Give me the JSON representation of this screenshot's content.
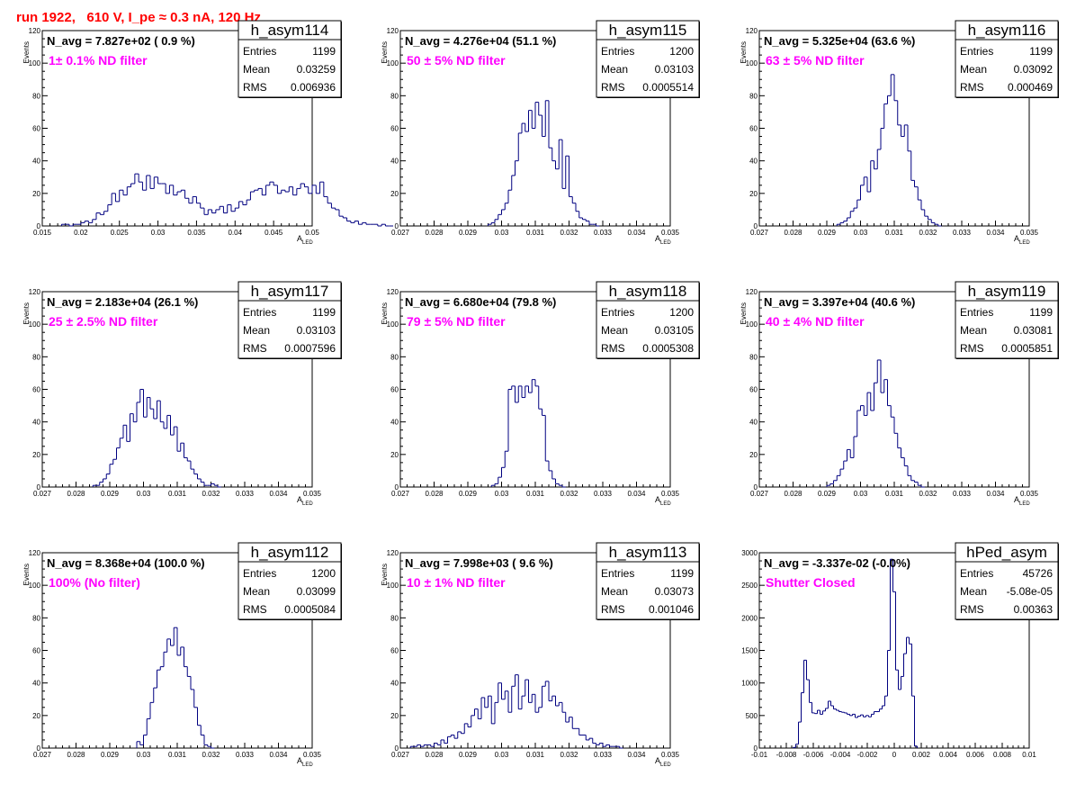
{
  "header": {
    "run_title": "run 1922,   610 V, I_pe ≈ 0.3 nA, 120 Hz"
  },
  "colors": {
    "hist_line": "#000080",
    "title": "#ff0000",
    "filter_text": "#ff00ff"
  },
  "chart_data": [
    {
      "type": "histogram",
      "name": "h_asym114",
      "navg_label": "N_avg = 7.827e+02 ( 0.9 %)",
      "filter_label": "1± 0.1% ND filter",
      "stats": {
        "entries": "1199",
        "mean": "0.03259",
        "rms": "0.006936"
      },
      "stat_keys": [
        "Entries",
        "Mean",
        "RMS"
      ],
      "xlabel_main": "A",
      "xlabel_sub": "LED",
      "ylabel": "Events",
      "xlim": [
        0.015,
        0.05
      ],
      "ylim": [
        0,
        120
      ],
      "xticks": [
        0.015,
        0.02,
        0.025,
        0.03,
        0.035,
        0.04,
        0.045,
        0.05
      ],
      "xtick_labels": [
        "0.015",
        "0.02",
        "0.025",
        "0.03",
        "0.035",
        "0.04",
        "0.045",
        "0.05"
      ],
      "yticks": [
        0,
        20,
        40,
        60,
        80,
        100,
        120
      ],
      "ytick_labels": [
        "0",
        "20",
        "40",
        "60",
        "80",
        "100",
        "120"
      ],
      "bins": {
        "start": 0.0175,
        "width": 0.0005,
        "counts": [
          1,
          1,
          0,
          1,
          1,
          2,
          3,
          2,
          4,
          8,
          7,
          9,
          13,
          20,
          15,
          22,
          19,
          24,
          26,
          32,
          27,
          22,
          31,
          23,
          30,
          26,
          26,
          20,
          25,
          19,
          21,
          22,
          17,
          14,
          18,
          14,
          11,
          7,
          10,
          8,
          10,
          12,
          8,
          13,
          9,
          11,
          15,
          13,
          16,
          21,
          22,
          23,
          19,
          25,
          27,
          25,
          20,
          22,
          21,
          24,
          19,
          23,
          26,
          24,
          20,
          25,
          20,
          27,
          18,
          14,
          11,
          10,
          6,
          5,
          3,
          2,
          3,
          1,
          2,
          1,
          1,
          1,
          0,
          1,
          0,
          0
        ]
      }
    },
    {
      "type": "histogram",
      "name": "h_asym115",
      "navg_label": "N_avg = 4.276e+04 (51.1 %)",
      "filter_label": "50 ± 5% ND filter",
      "stats": {
        "entries": "1200",
        "mean": "0.03103",
        "rms": "0.0005514"
      },
      "stat_keys": [
        "Entries",
        "Mean",
        "RMS"
      ],
      "xlabel_main": "A",
      "xlabel_sub": "LED",
      "ylabel": "Events",
      "xlim": [
        0.027,
        0.035
      ],
      "ylim": [
        0,
        120
      ],
      "xticks": [
        0.027,
        0.028,
        0.029,
        0.03,
        0.031,
        0.032,
        0.033,
        0.034,
        0.035
      ],
      "xtick_labels": [
        "0.027",
        "0.028",
        "0.029",
        "0.03",
        "0.031",
        "0.032",
        "0.033",
        "0.034",
        "0.035"
      ],
      "yticks": [
        0,
        20,
        40,
        60,
        80,
        100,
        120
      ],
      "ytick_labels": [
        "0",
        "20",
        "40",
        "60",
        "80",
        "100",
        "120"
      ],
      "bins": {
        "start": 0.0296,
        "width": 0.0001,
        "counts": [
          1,
          2,
          4,
          7,
          10,
          14,
          22,
          31,
          40,
          57,
          63,
          58,
          71,
          60,
          76,
          68,
          55,
          77,
          48,
          40,
          35,
          53,
          23,
          43,
          18,
          14,
          9,
          5,
          4,
          3,
          1,
          1,
          0
        ]
      }
    },
    {
      "type": "histogram",
      "name": "h_asym116",
      "navg_label": "N_avg = 5.325e+04 (63.6 %)",
      "filter_label": "63 ± 5% ND filter",
      "stats": {
        "entries": "1199",
        "mean": "0.03092",
        "rms": "0.000469"
      },
      "stat_keys": [
        "Entries",
        "Mean",
        "RMS"
      ],
      "xlabel_main": "A",
      "xlabel_sub": "LED",
      "ylabel": "Events",
      "xlim": [
        0.027,
        0.035
      ],
      "ylim": [
        0,
        120
      ],
      "xticks": [
        0.027,
        0.028,
        0.029,
        0.03,
        0.031,
        0.032,
        0.033,
        0.034,
        0.035
      ],
      "xtick_labels": [
        "0.027",
        "0.028",
        "0.029",
        "0.03",
        "0.031",
        "0.032",
        "0.033",
        "0.034",
        "0.035"
      ],
      "yticks": [
        0,
        20,
        40,
        60,
        80,
        100,
        120
      ],
      "ytick_labels": [
        "0",
        "20",
        "40",
        "60",
        "80",
        "100",
        "120"
      ],
      "bins": {
        "start": 0.0293,
        "width": 0.0001,
        "counts": [
          1,
          2,
          3,
          5,
          9,
          11,
          16,
          25,
          30,
          21,
          40,
          35,
          47,
          60,
          75,
          80,
          93,
          77,
          62,
          55,
          62,
          46,
          28,
          24,
          16,
          10,
          6,
          4,
          2,
          1,
          0
        ]
      }
    },
    {
      "type": "histogram",
      "name": "h_asym117",
      "navg_label": "N_avg = 2.183e+04 (26.1 %)",
      "filter_label": "25 ± 2.5% ND filter",
      "stats": {
        "entries": "1199",
        "mean": "0.03103",
        "rms": "0.0007596"
      },
      "stat_keys": [
        "Entries",
        "Mean",
        "RMS"
      ],
      "xlabel_main": "A",
      "xlabel_sub": "LED",
      "ylabel": "Events",
      "xlim": [
        0.027,
        0.035
      ],
      "ylim": [
        0,
        120
      ],
      "xticks": [
        0.027,
        0.028,
        0.029,
        0.03,
        0.031,
        0.032,
        0.033,
        0.034,
        0.035
      ],
      "xtick_labels": [
        "0.027",
        "0.028",
        "0.029",
        "0.03",
        "0.031",
        "0.032",
        "0.033",
        "0.034",
        "0.035"
      ],
      "yticks": [
        0,
        20,
        40,
        60,
        80,
        100,
        120
      ],
      "ytick_labels": [
        "0",
        "20",
        "40",
        "60",
        "80",
        "100",
        "120"
      ],
      "bins": {
        "start": 0.0285,
        "width": 0.0001,
        "counts": [
          1,
          1,
          3,
          5,
          8,
          14,
          17,
          24,
          30,
          38,
          28,
          45,
          40,
          52,
          60,
          43,
          55,
          48,
          42,
          53,
          40,
          36,
          44,
          32,
          37,
          22,
          27,
          18,
          16,
          11,
          8,
          5,
          3,
          1,
          1,
          2,
          1,
          0
        ]
      }
    },
    {
      "type": "histogram",
      "name": "h_asym118",
      "navg_label": "N_avg = 6.680e+04 (79.8 %)",
      "filter_label": "79 ± 5% ND filter",
      "stats": {
        "entries": "1200",
        "mean": "0.03105",
        "rms": "0.0005308"
      },
      "stat_keys": [
        "Entries",
        "Mean",
        "RMS"
      ],
      "xlabel_main": "A",
      "xlabel_sub": "LED",
      "ylabel": "Events",
      "xlim": [
        0.027,
        0.035
      ],
      "ylim": [
        0,
        120
      ],
      "xticks": [
        0.027,
        0.028,
        0.029,
        0.03,
        0.031,
        0.032,
        0.033,
        0.034,
        0.035
      ],
      "xtick_labels": [
        "0.027",
        "0.028",
        "0.029",
        "0.03",
        "0.031",
        "0.032",
        "0.033",
        "0.034",
        "0.035"
      ],
      "yticks": [
        0,
        20,
        40,
        60,
        80,
        100,
        120
      ],
      "ytick_labels": [
        "0",
        "20",
        "40",
        "60",
        "80",
        "100",
        "120"
      ],
      "bins": {
        "start": 0.0297,
        "width": 0.0001,
        "counts": [
          1,
          2,
          6,
          12,
          22,
          60,
          62,
          52,
          62,
          55,
          62,
          58,
          66,
          62,
          48,
          44,
          16,
          10,
          5,
          2,
          1,
          0
        ]
      }
    },
    {
      "type": "histogram",
      "name": "h_asym119",
      "navg_label": "N_avg = 3.397e+04 (40.6 %)",
      "filter_label": "40 ± 4% ND filter",
      "stats": {
        "entries": "1199",
        "mean": "0.03081",
        "rms": "0.0005851"
      },
      "stat_keys": [
        "Entries",
        "Mean",
        "RMS"
      ],
      "xlabel_main": "A",
      "xlabel_sub": "LED",
      "ylabel": "Events",
      "xlim": [
        0.027,
        0.035
      ],
      "ylim": [
        0,
        120
      ],
      "xticks": [
        0.027,
        0.028,
        0.029,
        0.03,
        0.031,
        0.032,
        0.033,
        0.034,
        0.035
      ],
      "xtick_labels": [
        "0.027",
        "0.028",
        "0.029",
        "0.03",
        "0.031",
        "0.032",
        "0.033",
        "0.034",
        "0.035"
      ],
      "yticks": [
        0,
        20,
        40,
        60,
        80,
        100,
        120
      ],
      "ytick_labels": [
        "0",
        "20",
        "40",
        "60",
        "80",
        "100",
        "120"
      ],
      "bins": {
        "start": 0.029,
        "width": 0.0001,
        "counts": [
          1,
          2,
          4,
          7,
          11,
          16,
          23,
          18,
          31,
          47,
          50,
          44,
          58,
          47,
          64,
          78,
          58,
          66,
          50,
          43,
          33,
          24,
          18,
          13,
          7,
          4,
          3,
          1,
          0
        ]
      }
    },
    {
      "type": "histogram",
      "name": "h_asym112",
      "navg_label": "N_avg = 8.368e+04 (100.0 %)",
      "filter_label": "100% (No filter)",
      "stats": {
        "entries": "1200",
        "mean": "0.03099",
        "rms": "0.0005084"
      },
      "stat_keys": [
        "Entries",
        "Mean",
        "RMS"
      ],
      "xlabel_main": "A",
      "xlabel_sub": "LED",
      "ylabel": "Events",
      "xlim": [
        0.027,
        0.035
      ],
      "ylim": [
        0,
        120
      ],
      "xticks": [
        0.027,
        0.028,
        0.029,
        0.03,
        0.031,
        0.032,
        0.033,
        0.034,
        0.035
      ],
      "xtick_labels": [
        "0.027",
        "0.028",
        "0.029",
        "0.03",
        "0.031",
        "0.032",
        "0.033",
        "0.034",
        "0.035"
      ],
      "yticks": [
        0,
        20,
        40,
        60,
        80,
        100,
        120
      ],
      "ytick_labels": [
        "0",
        "20",
        "40",
        "60",
        "80",
        "100",
        "120"
      ],
      "bins": {
        "start": 0.0298,
        "width": 0.0001,
        "counts": [
          4,
          2,
          8,
          18,
          28,
          37,
          48,
          50,
          59,
          67,
          63,
          74,
          57,
          62,
          50,
          44,
          36,
          25,
          14,
          8,
          2,
          1,
          0
        ]
      }
    },
    {
      "type": "histogram",
      "name": "h_asym113",
      "navg_label": "N_avg = 7.998e+03 ( 9.6 %)",
      "filter_label": "10 ± 1% ND filter",
      "stats": {
        "entries": "1199",
        "mean": "0.03073",
        "rms": "0.001046"
      },
      "stat_keys": [
        "Entries",
        "Mean",
        "RMS"
      ],
      "xlabel_main": "A",
      "xlabel_sub": "LED",
      "ylabel": "Events",
      "xlim": [
        0.027,
        0.035
      ],
      "ylim": [
        0,
        120
      ],
      "xticks": [
        0.027,
        0.028,
        0.029,
        0.03,
        0.031,
        0.032,
        0.033,
        0.034,
        0.035
      ],
      "xtick_labels": [
        "0.027",
        "0.028",
        "0.029",
        "0.03",
        "0.031",
        "0.032",
        "0.033",
        "0.034",
        "0.035"
      ],
      "yticks": [
        0,
        20,
        40,
        60,
        80,
        100,
        120
      ],
      "ytick_labels": [
        "0",
        "20",
        "40",
        "60",
        "80",
        "100",
        "120"
      ],
      "bins": {
        "start": 0.0273,
        "width": 0.0001,
        "counts": [
          1,
          1,
          2,
          1,
          2,
          2,
          1,
          3,
          2,
          5,
          3,
          7,
          8,
          6,
          10,
          9,
          15,
          13,
          20,
          24,
          18,
          31,
          25,
          32,
          15,
          28,
          40,
          30,
          35,
          22,
          38,
          45,
          24,
          32,
          42,
          28,
          33,
          22,
          25,
          38,
          41,
          29,
          32,
          26,
          28,
          22,
          16,
          19,
          12,
          12,
          8,
          8,
          5,
          6,
          3,
          2,
          3,
          1,
          2,
          1,
          1,
          1,
          0
        ]
      }
    },
    {
      "type": "histogram",
      "name": "hPed_asym",
      "navg_label": "N_avg = -3.337e-02 (-0.0%)",
      "filter_label": "Shutter Closed",
      "stats": {
        "entries": "45726",
        "mean": "-5.08e-05",
        "rms": "0.00363"
      },
      "stat_keys": [
        "Entries",
        "Mean",
        "RMS"
      ],
      "xlabel_main": "",
      "xlabel_sub": "",
      "ylabel": "",
      "xlim": [
        -0.01,
        0.01
      ],
      "ylim": [
        0,
        3000
      ],
      "xticks": [
        -0.01,
        -0.008,
        -0.006,
        -0.004,
        -0.002,
        0,
        0.002,
        0.004,
        0.006,
        0.008,
        0.01
      ],
      "xtick_labels": [
        "-0.01",
        "-0.008",
        "-0.006",
        "-0.004",
        "-0.002",
        "0",
        "0.002",
        "0.004",
        "0.006",
        "0.008",
        "0.01"
      ],
      "yticks": [
        0,
        500,
        1000,
        1500,
        2000,
        2500,
        3000
      ],
      "ytick_labels": [
        "0",
        "500",
        "1000",
        "1500",
        "2000",
        "2500",
        "3000"
      ],
      "bins": {
        "start": -0.0075,
        "width": 0.0002,
        "counts": [
          10,
          60,
          400,
          850,
          1350,
          1050,
          700,
          540,
          530,
          580,
          520,
          570,
          610,
          720,
          650,
          600,
          580,
          560,
          550,
          540,
          520,
          500,
          520,
          470,
          490,
          510,
          480,
          500,
          480,
          520,
          560,
          560,
          600,
          650,
          800,
          1500,
          2900,
          2400,
          1200,
          900,
          1100,
          1450,
          1700,
          1600,
          800,
          30
        ]
      }
    }
  ]
}
